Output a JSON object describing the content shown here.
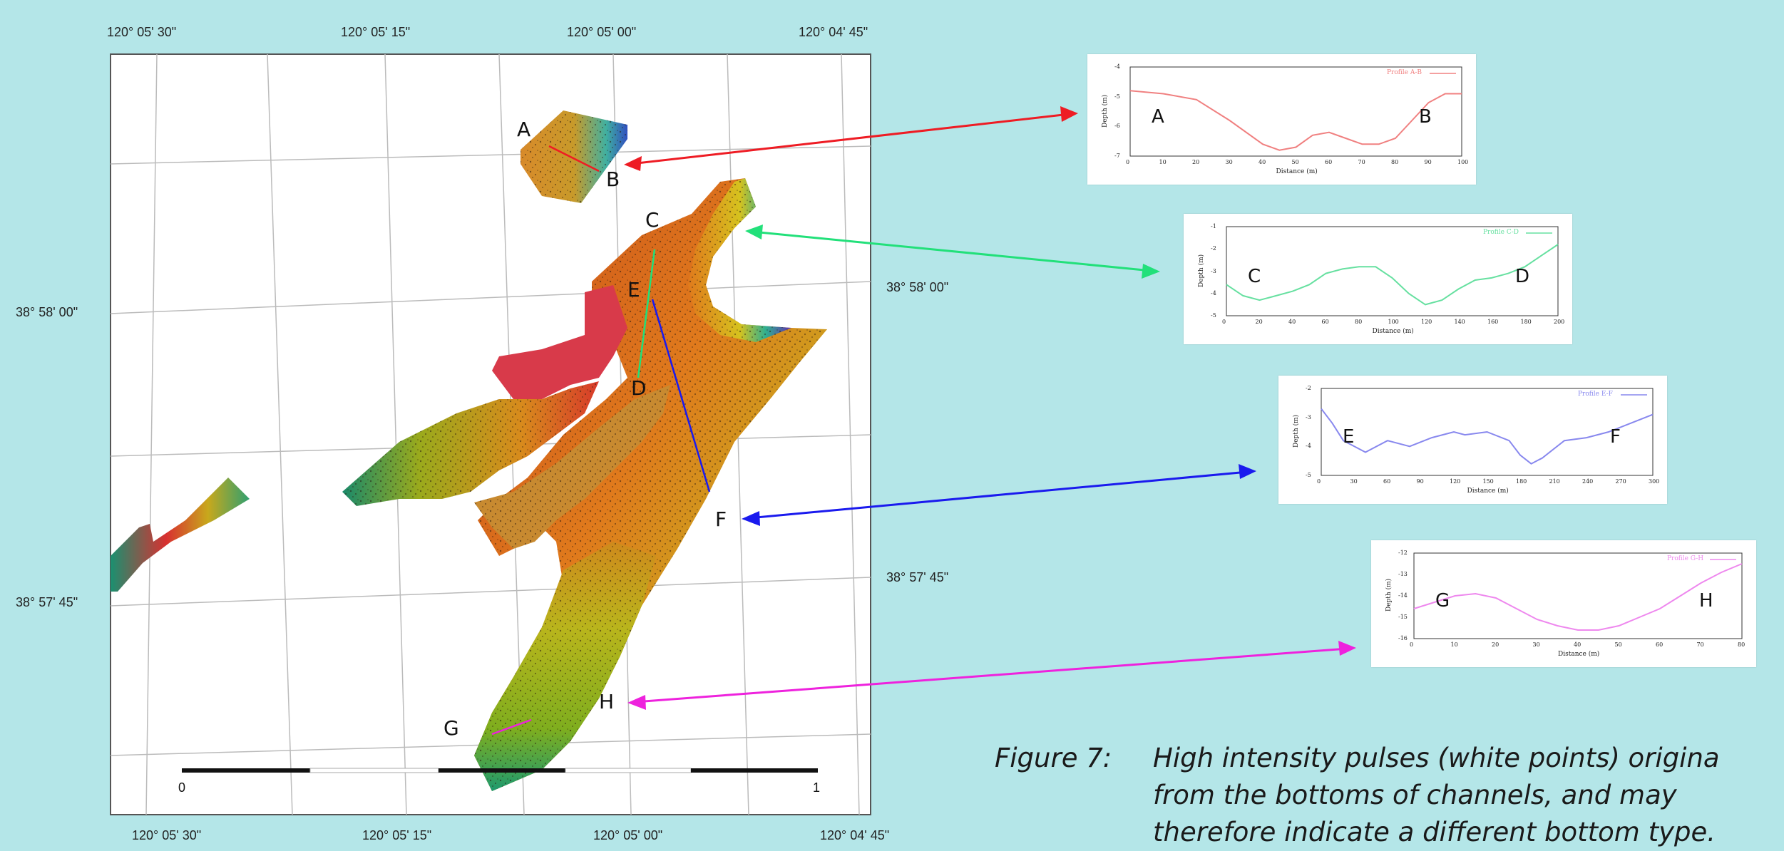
{
  "colors": {
    "background": "#b4e6e8",
    "arrow_ab": "#ee1c24",
    "arrow_cd": "#22e07a",
    "arrow_ef": "#1a1aee",
    "arrow_gh": "#ee22dd",
    "profile_ab": "#f08080",
    "profile_cd": "#66e0a0",
    "profile_ef": "#8888ee",
    "profile_gh": "#ee88ee"
  },
  "map": {
    "top_longitudes": [
      "120° 05' 30\"",
      "120° 05' 15\"",
      "120° 05' 00\"",
      "120° 04' 45\""
    ],
    "bottom_longitudes": [
      "120° 05' 30\"",
      "120° 05' 15\"",
      "120° 05' 00\"",
      "120° 04' 45\""
    ],
    "left_latitudes": [
      "38° 58' 00\"",
      "38° 57' 45\""
    ],
    "right_latitudes": [
      "38° 58' 00\"",
      "38° 57' 45\""
    ],
    "point_labels": [
      "A",
      "B",
      "C",
      "D",
      "E",
      "F",
      "G",
      "H"
    ],
    "scale_start": "0",
    "scale_end": "1"
  },
  "profiles": [
    {
      "id": "ab",
      "legend": "Profile A-B",
      "ylabel": "Depth (m)",
      "xlabel": "Distance (m)",
      "left_letter": "A",
      "right_letter": "B",
      "xticks": [
        "0",
        "10",
        "20",
        "30",
        "40",
        "50",
        "60",
        "70",
        "80",
        "90",
        "100"
      ],
      "yticks": [
        "-4",
        "-5",
        "-6",
        "-7"
      ],
      "x": [
        0,
        10,
        20,
        30,
        40,
        45,
        50,
        55,
        60,
        65,
        70,
        75,
        80,
        85,
        90,
        95,
        100
      ],
      "y": [
        -4.8,
        -4.9,
        -5.1,
        -5.8,
        -6.6,
        -6.8,
        -6.7,
        -6.3,
        -6.2,
        -6.4,
        -6.6,
        -6.6,
        -6.4,
        -5.8,
        -5.2,
        -4.9,
        -4.9
      ]
    },
    {
      "id": "cd",
      "legend": "Profile C-D",
      "ylabel": "Depth (m)",
      "xlabel": "Distance (m)",
      "left_letter": "C",
      "right_letter": "D",
      "xticks": [
        "0",
        "20",
        "40",
        "60",
        "80",
        "100",
        "120",
        "140",
        "160",
        "180",
        "200"
      ],
      "yticks": [
        "-1",
        "-2",
        "-3",
        "-4",
        "-5"
      ],
      "x": [
        0,
        10,
        20,
        30,
        40,
        50,
        60,
        70,
        80,
        90,
        100,
        110,
        120,
        130,
        140,
        150,
        160,
        170,
        180,
        190,
        200
      ],
      "y": [
        -3.6,
        -4.1,
        -4.3,
        -4.1,
        -3.9,
        -3.6,
        -3.1,
        -2.9,
        -2.8,
        -2.8,
        -3.3,
        -4.0,
        -4.5,
        -4.3,
        -3.8,
        -3.4,
        -3.3,
        -3.1,
        -2.8,
        -2.3,
        -1.8
      ]
    },
    {
      "id": "ef",
      "legend": "Profile E-F",
      "ylabel": "Depth (m)",
      "xlabel": "Distance (m)",
      "left_letter": "E",
      "right_letter": "F",
      "xticks": [
        "0",
        "30",
        "60",
        "90",
        "120",
        "150",
        "180",
        "210",
        "240",
        "270",
        "300"
      ],
      "yticks": [
        "-2",
        "-3",
        "-4",
        "-5"
      ],
      "x": [
        0,
        10,
        20,
        40,
        60,
        80,
        100,
        120,
        130,
        150,
        170,
        180,
        190,
        200,
        220,
        240,
        260,
        280,
        300
      ],
      "y": [
        -2.7,
        -3.2,
        -3.8,
        -4.2,
        -3.8,
        -4.0,
        -3.7,
        -3.5,
        -3.6,
        -3.5,
        -3.8,
        -4.3,
        -4.6,
        -4.4,
        -3.8,
        -3.7,
        -3.5,
        -3.2,
        -2.9
      ]
    },
    {
      "id": "gh",
      "legend": "Profile G-H",
      "ylabel": "Depth (m)",
      "xlabel": "Distance (m)",
      "left_letter": "G",
      "right_letter": "H",
      "xticks": [
        "0",
        "10",
        "20",
        "30",
        "40",
        "50",
        "60",
        "70",
        "80"
      ],
      "yticks": [
        "-12",
        "-13",
        "-14",
        "-15",
        "-16"
      ],
      "x": [
        0,
        5,
        10,
        15,
        20,
        25,
        30,
        35,
        40,
        45,
        50,
        55,
        60,
        65,
        70,
        75,
        80
      ],
      "y": [
        -14.6,
        -14.3,
        -14.0,
        -13.9,
        -14.1,
        -14.6,
        -15.1,
        -15.4,
        -15.6,
        -15.6,
        -15.4,
        -15.0,
        -14.6,
        -14.0,
        -13.4,
        -12.9,
        -12.5
      ]
    }
  ],
  "caption": {
    "figure_label": "Figure 7:",
    "line1": "High intensity pulses (white points) origina",
    "line2": "from the bottoms of channels,  and may",
    "line3": "therefore indicate a different bottom type."
  }
}
